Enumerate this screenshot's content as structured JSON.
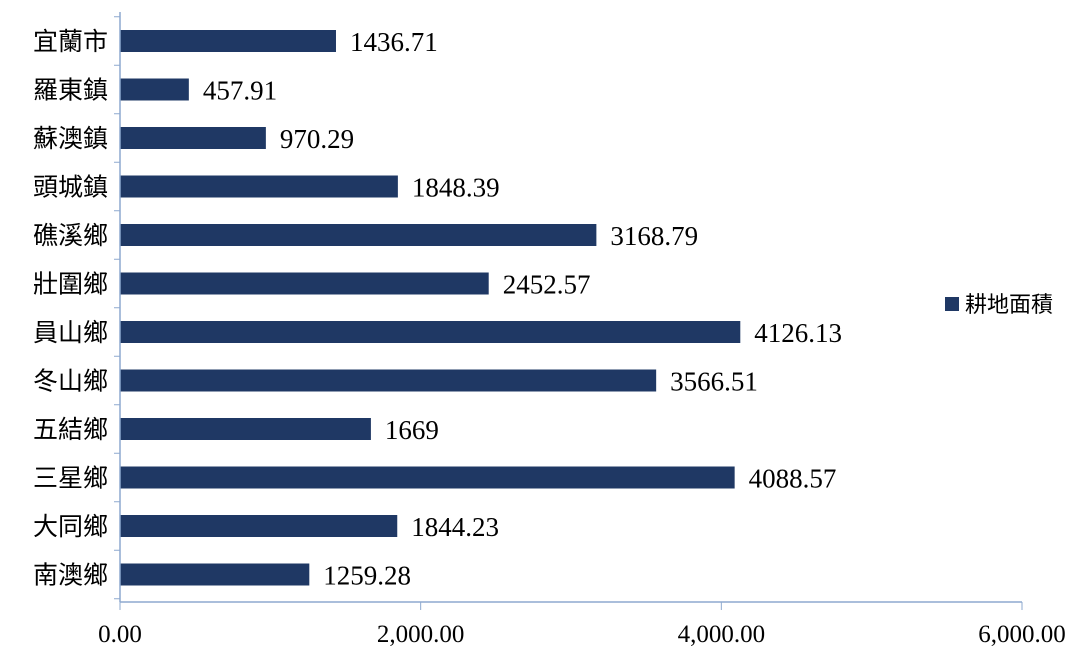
{
  "chart_data": {
    "type": "bar",
    "orientation": "horizontal",
    "categories": [
      "宜蘭市",
      "羅東鎮",
      "蘇澳鎮",
      "頭城鎮",
      "礁溪鄉",
      "壯圍鄉",
      "員山鄉",
      "冬山鄉",
      "五結鄉",
      "三星鄉",
      "大同鄉",
      "南澳鄉"
    ],
    "series": [
      {
        "name": "耕地面積",
        "values": [
          1436.71,
          457.91,
          970.29,
          1848.39,
          3168.79,
          2452.57,
          4126.13,
          3566.51,
          1669,
          4088.57,
          1844.23,
          1259.28
        ],
        "value_labels": [
          "1436.71",
          "457.91",
          "970.29",
          "1848.39",
          "3168.79",
          "2452.57",
          "4126.13",
          "3566.51",
          "1669",
          "4088.57",
          "1844.23",
          "1259.28"
        ]
      }
    ],
    "xlim": [
      0,
      6000
    ],
    "x_ticks": [
      0,
      2000,
      4000,
      6000
    ],
    "x_tick_labels": [
      "0.00",
      "2,000.00",
      "4,000.00",
      "6,000.00"
    ],
    "title": "",
    "xlabel": "",
    "ylabel": "",
    "grid": false,
    "legend": "right",
    "colors": {
      "bar": "#1f3864",
      "axis": "#8ea9cf"
    }
  }
}
